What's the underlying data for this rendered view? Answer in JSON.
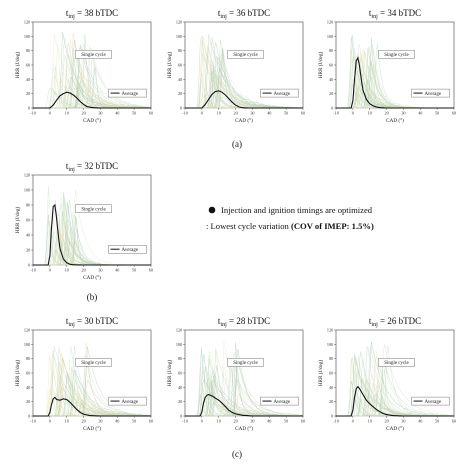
{
  "figure": {
    "captions": [
      "(a)",
      "(b)",
      "(c)"
    ],
    "note": {
      "line1": "Injection and ignition timings are optimized",
      "line2_prefix": ": Lowest cycle variation ",
      "line2_bold": "(COV of IMEP: 1.5%)"
    }
  },
  "chart_data": [
    {
      "type": "line",
      "title_prefix": "t",
      "title_sub": "inj",
      "title_suffix": " = 38 bTDC",
      "xlabel": "CAD (°)",
      "ylabel": "HRR (J/deg)",
      "xlim": [
        -10,
        60
      ],
      "ylim": [
        0,
        120
      ],
      "xticks": [
        -10,
        0,
        10,
        20,
        30,
        40,
        50,
        60
      ],
      "yticks": [
        0,
        20,
        40,
        60,
        80,
        100,
        120
      ],
      "legend": [
        "Single cycle",
        "Average"
      ],
      "series": [
        {
          "name": "Average",
          "x": [
            -10,
            0,
            2,
            4,
            6,
            8,
            10,
            12,
            14,
            16,
            18,
            20,
            22,
            24,
            26,
            30,
            40,
            50,
            60
          ],
          "y": [
            0,
            0,
            4,
            11,
            17,
            20,
            22,
            21,
            18,
            14,
            9,
            5,
            2,
            1,
            0.4,
            0,
            0,
            0,
            0
          ]
        }
      ]
    },
    {
      "type": "line",
      "title_prefix": "t",
      "title_sub": "inj",
      "title_suffix": " = 36 bTDC",
      "xlabel": "CAD (°)",
      "ylabel": "HRR (J/deg)",
      "xlim": [
        -10,
        60
      ],
      "ylim": [
        0,
        120
      ],
      "xticks": [
        -10,
        0,
        10,
        20,
        30,
        40,
        50,
        60
      ],
      "yticks": [
        0,
        20,
        40,
        60,
        80,
        100,
        120
      ],
      "legend": [
        "Single cycle",
        "Average"
      ],
      "series": [
        {
          "name": "Average",
          "x": [
            -10,
            0,
            2,
            4,
            6,
            8,
            10,
            12,
            14,
            16,
            18,
            20,
            22,
            24,
            26,
            30,
            40,
            50,
            60
          ],
          "y": [
            0,
            0,
            5,
            12,
            19,
            23,
            24,
            22,
            18,
            13,
            8,
            4,
            1.5,
            0.5,
            0.1,
            0,
            0,
            0,
            0
          ]
        }
      ]
    },
    {
      "type": "line",
      "title_prefix": "t",
      "title_sub": "inj",
      "title_suffix": " = 34 bTDC",
      "xlabel": "CAD (°)",
      "ylabel": "HRR (J/deg)",
      "xlim": [
        -10,
        60
      ],
      "ylim": [
        0,
        120
      ],
      "xticks": [
        -10,
        0,
        10,
        20,
        30,
        40,
        50,
        60
      ],
      "yticks": [
        0,
        20,
        40,
        60,
        80,
        100,
        120
      ],
      "legend": [
        "Single cycle",
        "Average"
      ],
      "series": [
        {
          "name": "Average",
          "x": [
            -10,
            -1,
            0,
            1,
            2,
            3,
            4,
            5,
            6,
            8,
            10,
            12,
            14,
            16,
            20,
            30,
            40,
            50,
            60
          ],
          "y": [
            0,
            0,
            10,
            40,
            66,
            70,
            58,
            40,
            25,
            12,
            6,
            3,
            1.5,
            0.5,
            0,
            0,
            0,
            0,
            0
          ]
        }
      ]
    },
    {
      "type": "line",
      "title_prefix": "t",
      "title_sub": "inj",
      "title_suffix": " = 32 bTDC",
      "xlabel": "CAD (°)",
      "ylabel": "HRR (J/deg)",
      "xlim": [
        -10,
        60
      ],
      "ylim": [
        0,
        120
      ],
      "xticks": [
        -10,
        0,
        10,
        20,
        30,
        40,
        50,
        60
      ],
      "yticks": [
        0,
        20,
        40,
        60,
        80,
        100,
        120
      ],
      "legend": [
        "Single cycle",
        "Average"
      ],
      "series": [
        {
          "name": "Average",
          "x": [
            -10,
            -1,
            0,
            1,
            2,
            3,
            4,
            5,
            6,
            8,
            10,
            12,
            14,
            20,
            30,
            40,
            50,
            60
          ],
          "y": [
            0,
            0,
            12,
            50,
            78,
            80,
            62,
            40,
            22,
            8,
            3,
            1,
            0.3,
            0,
            0,
            0,
            0,
            0
          ]
        }
      ]
    },
    {
      "type": "line",
      "title_prefix": "t",
      "title_sub": "inj",
      "title_suffix": " = 30 bTDC",
      "xlabel": "CAD (°)",
      "ylabel": "HRR (J/deg)",
      "xlim": [
        -10,
        60
      ],
      "ylim": [
        0,
        120
      ],
      "xticks": [
        -10,
        0,
        10,
        20,
        30,
        40,
        50,
        60
      ],
      "yticks": [
        0,
        20,
        40,
        60,
        80,
        100,
        120
      ],
      "legend": [
        "Single cycle",
        "Average"
      ],
      "series": [
        {
          "name": "Average",
          "x": [
            -10,
            -1,
            0,
            1,
            2,
            3,
            4,
            6,
            8,
            10,
            12,
            14,
            16,
            18,
            20,
            24,
            30,
            40,
            50,
            60
          ],
          "y": [
            0,
            0,
            5,
            16,
            24,
            26,
            23,
            22,
            24,
            23,
            19,
            14,
            9,
            5,
            2.5,
            0.5,
            0,
            0,
            0,
            0
          ]
        }
      ]
    },
    {
      "type": "line",
      "title_prefix": "t",
      "title_sub": "inj",
      "title_suffix": " = 28 bTDC",
      "xlabel": "CAD (°)",
      "ylabel": "HRR (J/deg)",
      "xlim": [
        -10,
        60
      ],
      "ylim": [
        0,
        120
      ],
      "xticks": [
        -10,
        0,
        10,
        20,
        30,
        40,
        50,
        60
      ],
      "yticks": [
        0,
        20,
        40,
        60,
        80,
        100,
        120
      ],
      "legend": [
        "Single cycle",
        "Average"
      ],
      "series": [
        {
          "name": "Average",
          "x": [
            -10,
            -1,
            0,
            1,
            2,
            3,
            4,
            6,
            8,
            10,
            12,
            14,
            16,
            18,
            20,
            24,
            30,
            40,
            50,
            60
          ],
          "y": [
            0,
            0,
            6,
            18,
            26,
            29,
            30,
            28,
            25,
            22,
            18,
            13,
            8,
            5,
            3,
            1,
            0,
            0,
            0,
            0
          ]
        }
      ]
    },
    {
      "type": "line",
      "title_prefix": "t",
      "title_sub": "inj",
      "title_suffix": " = 26 bTDC",
      "xlabel": "CAD (°)",
      "ylabel": "HRR (J/deg)",
      "xlim": [
        -10,
        60
      ],
      "ylim": [
        0,
        120
      ],
      "xticks": [
        -10,
        0,
        10,
        20,
        30,
        40,
        50,
        60
      ],
      "yticks": [
        0,
        20,
        40,
        60,
        80,
        100,
        120
      ],
      "legend": [
        "Single cycle",
        "Average"
      ],
      "series": [
        {
          "name": "Average",
          "x": [
            -10,
            -1,
            0,
            1,
            2,
            3,
            4,
            6,
            8,
            10,
            12,
            14,
            16,
            18,
            20,
            24,
            30,
            40,
            50,
            60
          ],
          "y": [
            0,
            0,
            8,
            26,
            38,
            41,
            38,
            30,
            22,
            17,
            13,
            9,
            6,
            3.5,
            2,
            0.5,
            0,
            0,
            0,
            0
          ]
        }
      ]
    }
  ]
}
